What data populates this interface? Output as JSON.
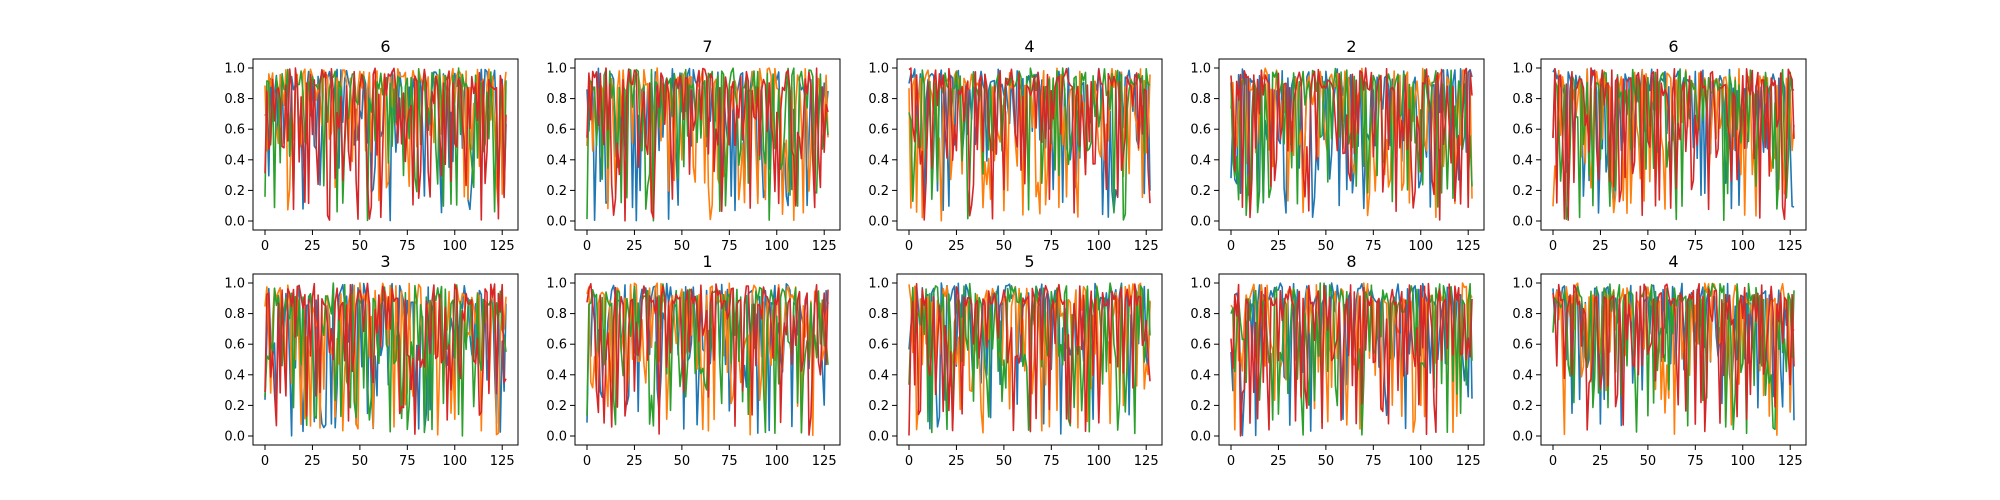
{
  "chart_data": [
    {
      "type": "line",
      "title": "6",
      "xlim": [
        0,
        127
      ],
      "ylim": [
        0,
        1
      ],
      "xticks": [
        0,
        25,
        50,
        75,
        100,
        125
      ],
      "yticks": [
        0.0,
        0.2,
        0.4,
        0.6,
        0.8,
        1.0
      ],
      "series_colors": [
        "#1f77b4",
        "#ff7f0e",
        "#2ca02c",
        "#d62728"
      ],
      "seed": 11
    },
    {
      "type": "line",
      "title": "7",
      "xlim": [
        0,
        127
      ],
      "ylim": [
        0,
        1
      ],
      "xticks": [
        0,
        25,
        50,
        75,
        100,
        125
      ],
      "yticks": [
        0.0,
        0.2,
        0.4,
        0.6,
        0.8,
        1.0
      ],
      "series_colors": [
        "#1f77b4",
        "#ff7f0e",
        "#2ca02c",
        "#d62728"
      ],
      "seed": 23
    },
    {
      "type": "line",
      "title": "4",
      "xlim": [
        0,
        127
      ],
      "ylim": [
        0,
        1
      ],
      "xticks": [
        0,
        25,
        50,
        75,
        100,
        125
      ],
      "yticks": [
        0.0,
        0.2,
        0.4,
        0.6,
        0.8,
        1.0
      ],
      "series_colors": [
        "#1f77b4",
        "#ff7f0e",
        "#2ca02c",
        "#d62728"
      ],
      "seed": 37
    },
    {
      "type": "line",
      "title": "2",
      "xlim": [
        0,
        127
      ],
      "ylim": [
        0,
        1
      ],
      "xticks": [
        0,
        25,
        50,
        75,
        100,
        125
      ],
      "yticks": [
        0.0,
        0.2,
        0.4,
        0.6,
        0.8,
        1.0
      ],
      "series_colors": [
        "#1f77b4",
        "#ff7f0e",
        "#2ca02c",
        "#d62728"
      ],
      "seed": 41
    },
    {
      "type": "line",
      "title": "6",
      "xlim": [
        0,
        127
      ],
      "ylim": [
        0,
        1
      ],
      "xticks": [
        0,
        25,
        50,
        75,
        100,
        125
      ],
      "yticks": [
        0.0,
        0.2,
        0.4,
        0.6,
        0.8,
        1.0
      ],
      "series_colors": [
        "#1f77b4",
        "#ff7f0e",
        "#2ca02c",
        "#d62728"
      ],
      "seed": 53
    },
    {
      "type": "line",
      "title": "3",
      "xlim": [
        0,
        127
      ],
      "ylim": [
        0,
        1
      ],
      "xticks": [
        0,
        25,
        50,
        75,
        100,
        125
      ],
      "yticks": [
        0.0,
        0.2,
        0.4,
        0.6,
        0.8,
        1.0
      ],
      "series_colors": [
        "#1f77b4",
        "#ff7f0e",
        "#2ca02c",
        "#d62728"
      ],
      "seed": 67
    },
    {
      "type": "line",
      "title": "1",
      "xlim": [
        0,
        127
      ],
      "ylim": [
        0,
        1
      ],
      "xticks": [
        0,
        25,
        50,
        75,
        100,
        125
      ],
      "yticks": [
        0.0,
        0.2,
        0.4,
        0.6,
        0.8,
        1.0
      ],
      "series_colors": [
        "#1f77b4",
        "#ff7f0e",
        "#2ca02c",
        "#d62728"
      ],
      "seed": 71
    },
    {
      "type": "line",
      "title": "5",
      "xlim": [
        0,
        127
      ],
      "ylim": [
        0,
        1
      ],
      "xticks": [
        0,
        25,
        50,
        75,
        100,
        125
      ],
      "yticks": [
        0.0,
        0.2,
        0.4,
        0.6,
        0.8,
        1.0
      ],
      "series_colors": [
        "#1f77b4",
        "#ff7f0e",
        "#2ca02c",
        "#d62728"
      ],
      "seed": 83
    },
    {
      "type": "line",
      "title": "8",
      "xlim": [
        0,
        127
      ],
      "ylim": [
        0,
        1
      ],
      "xticks": [
        0,
        25,
        50,
        75,
        100,
        125
      ],
      "yticks": [
        0.0,
        0.2,
        0.4,
        0.6,
        0.8,
        1.0
      ],
      "series_colors": [
        "#1f77b4",
        "#ff7f0e",
        "#2ca02c",
        "#d62728"
      ],
      "seed": 97
    },
    {
      "type": "line",
      "title": "4",
      "xlim": [
        0,
        127
      ],
      "ylim": [
        0,
        1
      ],
      "xticks": [
        0,
        25,
        50,
        75,
        100,
        125
      ],
      "yticks": [
        0.0,
        0.2,
        0.4,
        0.6,
        0.8,
        1.0
      ],
      "series_colors": [
        "#1f77b4",
        "#ff7f0e",
        "#2ca02c",
        "#d62728"
      ],
      "seed": 101
    }
  ]
}
